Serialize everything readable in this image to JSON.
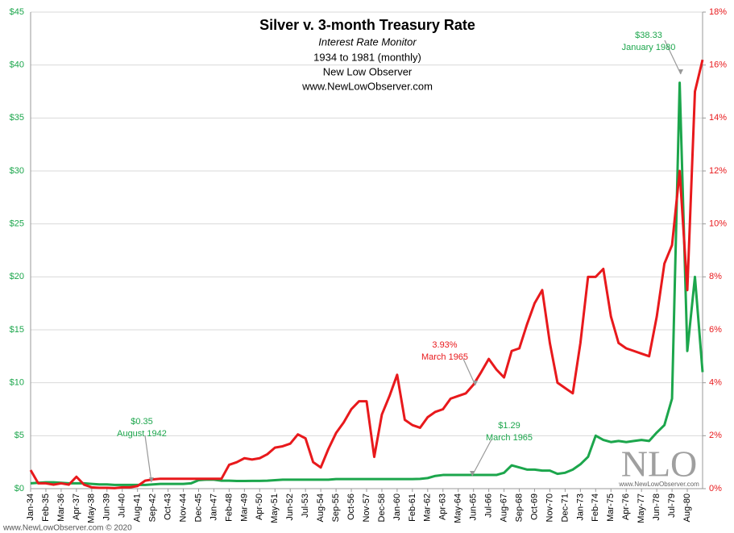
{
  "chart_data": {
    "type": "line",
    "title": "Silver v. 3-month Treasury Rate",
    "subtitle": [
      "Interest Rate Monitor",
      "1934 to 1981 (monthly)",
      "New Low Observer",
      "www.NewLowObserver.com"
    ],
    "categories": [
      "Jan-34",
      null,
      "Feb-35",
      null,
      "Mar-36",
      null,
      "Apr-37",
      null,
      "May-38",
      null,
      "Jun-39",
      null,
      "Jul-40",
      null,
      "Aug-41",
      null,
      "Sep-42",
      null,
      "Oct-43",
      null,
      "Nov-44",
      null,
      "Dec-45",
      null,
      "Jan-47",
      null,
      "Feb-48",
      null,
      "Mar-49",
      null,
      "Apr-50",
      null,
      "May-51",
      null,
      "Jun-52",
      null,
      "Jul-53",
      null,
      "Aug-54",
      null,
      "Sep-55",
      null,
      "Oct-56",
      null,
      "Nov-57",
      null,
      "Dec-58",
      null,
      "Jan-60",
      null,
      "Feb-61",
      null,
      "Mar-62",
      null,
      "Apr-63",
      null,
      "May-64",
      null,
      "Jun-65",
      null,
      "Jul-66",
      null,
      "Aug-67",
      null,
      "Sep-68",
      null,
      "Oct-69",
      null,
      "Nov-70",
      null,
      "Dec-71",
      null,
      "Jan-73",
      null,
      "Feb-74",
      null,
      "Mar-75",
      null,
      "Apr-76",
      null,
      "May-77",
      null,
      "Jun-78",
      null,
      "Jul-79",
      null,
      "Aug-80",
      null,
      null
    ],
    "series": [
      {
        "color": "#1ca64c",
        "values": [
          0.5,
          0.55,
          0.6,
          0.6,
          0.55,
          0.5,
          0.5,
          0.5,
          0.45,
          0.4,
          0.4,
          0.35,
          0.35,
          0.35,
          0.35,
          0.35,
          0.4,
          0.45,
          0.45,
          0.45,
          0.45,
          0.5,
          0.8,
          0.85,
          0.85,
          0.75,
          0.75,
          0.72,
          0.72,
          0.73,
          0.73,
          0.75,
          0.8,
          0.85,
          0.85,
          0.85,
          0.85,
          0.85,
          0.85,
          0.85,
          0.9,
          0.9,
          0.9,
          0.9,
          0.9,
          0.9,
          0.9,
          0.9,
          0.9,
          0.9,
          0.9,
          0.92,
          1.0,
          1.2,
          1.29,
          1.29,
          1.29,
          1.29,
          1.29,
          1.29,
          1.29,
          1.29,
          1.5,
          2.2,
          2.0,
          1.8,
          1.8,
          1.7,
          1.7,
          1.4,
          1.5,
          1.8,
          2.3,
          3.0,
          5.0,
          4.6,
          4.4,
          4.5,
          4.4,
          4.5,
          4.6,
          4.5,
          5.3,
          6.0,
          8.5,
          38.33,
          13,
          20,
          11
        ]
      },
      {
        "color": "#e8191c",
        "axis": "y2",
        "values": [
          0.7,
          0.2,
          0.2,
          0.15,
          0.2,
          0.15,
          0.45,
          0.15,
          0.05,
          0.03,
          0.03,
          0.02,
          0.05,
          0.05,
          0.1,
          0.3,
          0.35,
          0.375,
          0.375,
          0.375,
          0.375,
          0.375,
          0.375,
          0.375,
          0.375,
          0.375,
          0.9,
          1.0,
          1.15,
          1.1,
          1.15,
          1.3,
          1.55,
          1.6,
          1.7,
          2.05,
          1.9,
          1.0,
          0.8,
          1.5,
          2.1,
          2.5,
          3.0,
          3.3,
          3.3,
          1.2,
          2.8,
          3.5,
          4.3,
          2.6,
          2.4,
          2.3,
          2.7,
          2.9,
          3.0,
          3.4,
          3.5,
          3.6,
          3.93,
          4.4,
          4.9,
          4.5,
          4.2,
          5.2,
          5.3,
          6.2,
          7.0,
          7.5,
          5.5,
          4.0,
          3.8,
          3.6,
          5.5,
          8.0,
          8.0,
          8.3,
          6.5,
          5.5,
          5.3,
          5.2,
          5.1,
          5.0,
          6.5,
          8.5,
          9.2,
          12.0,
          7.5,
          15.0,
          16.2
        ]
      }
    ],
    "ylim": [
      0,
      45
    ],
    "yticks": [
      {
        "value": 0,
        "label": "$0"
      },
      {
        "value": 5,
        "label": "$5"
      },
      {
        "value": 10,
        "label": "$10"
      },
      {
        "value": 15,
        "label": "$15"
      },
      {
        "value": 20,
        "label": "$20"
      },
      {
        "value": 25,
        "label": "$25"
      },
      {
        "value": 30,
        "label": "$30"
      },
      {
        "value": 35,
        "label": "$35"
      },
      {
        "value": 40,
        "label": "$40"
      },
      {
        "value": 45,
        "label": "$45"
      }
    ],
    "y2lim": [
      0,
      18
    ],
    "y2ticks": [
      {
        "value": 0,
        "label": "0%"
      },
      {
        "value": 2,
        "label": "2%"
      },
      {
        "value": 4,
        "label": "4%"
      },
      {
        "value": 6,
        "label": "6%"
      },
      {
        "value": 8,
        "label": "8%"
      },
      {
        "value": 10,
        "label": "10%"
      },
      {
        "value": 12,
        "label": "12%"
      },
      {
        "value": 14,
        "label": "14%"
      },
      {
        "value": 16,
        "label": "16%"
      },
      {
        "value": 18,
        "label": "18%"
      }
    ],
    "grid": true,
    "annotations": [
      {
        "lines": [
          "$38.33",
          "January 1980"
        ],
        "color": "#1ca64c"
      },
      {
        "lines": [
          "3.93%",
          "March 1965"
        ],
        "color": "#e8191c"
      },
      {
        "lines": [
          "$1.29",
          "March 1965"
        ],
        "color": "#1ca64c"
      },
      {
        "lines": [
          "$0.35",
          "August 1942"
        ],
        "color": "#1ca64c"
      }
    ],
    "watermark": [
      "NLO",
      "www.NewLowObserver.com"
    ],
    "footer": "www.NewLowObserver.com © 2020"
  }
}
